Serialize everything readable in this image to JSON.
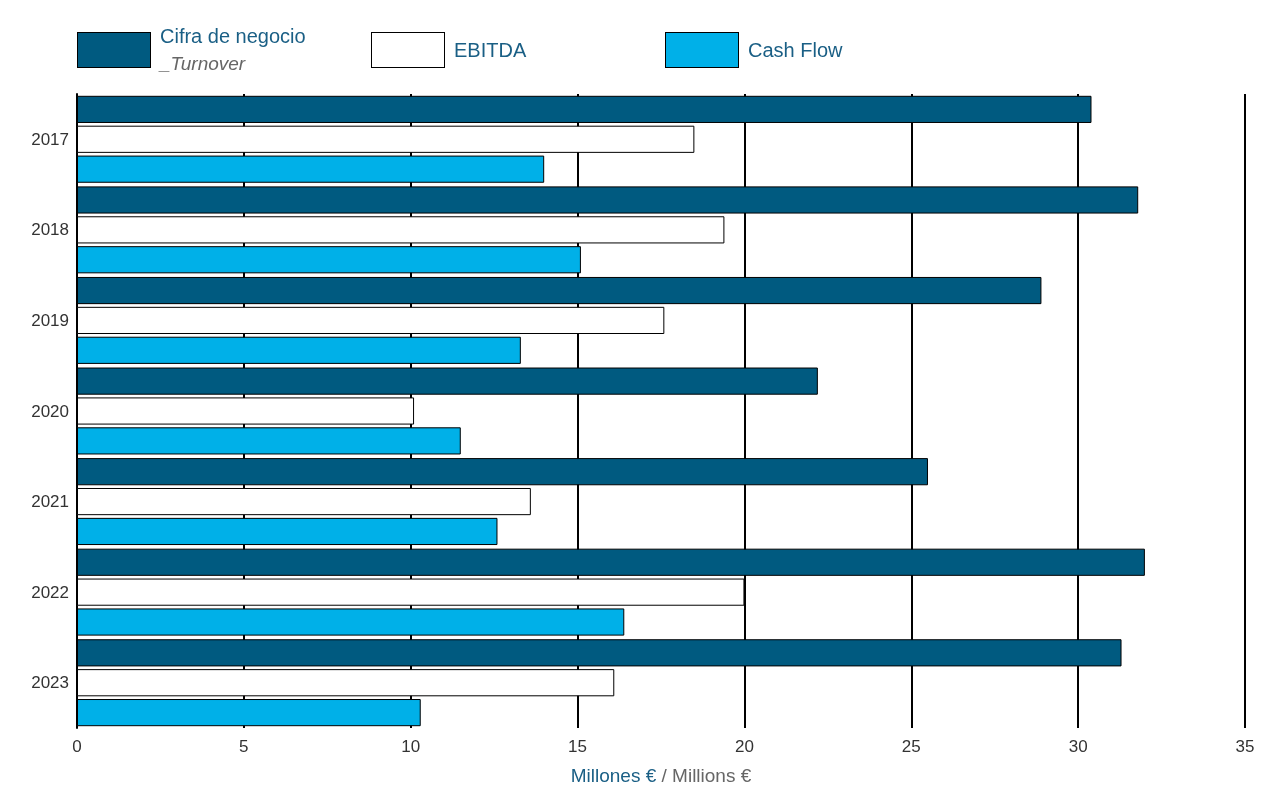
{
  "chart_data": {
    "type": "bar",
    "orientation": "horizontal",
    "xlabel": "Millones € / Millions €",
    "categories": [
      "2017",
      "2018",
      "2019",
      "2020",
      "2021",
      "2022",
      "2023"
    ],
    "series": [
      {
        "name": "Cifra de negocio\n_Turnover",
        "color": "#005a80",
        "values": [
          30.4,
          31.8,
          28.9,
          22.2,
          25.5,
          32.0,
          31.3
        ]
      },
      {
        "name": "EBITDA",
        "color": "#ffffff",
        "values": [
          18.5,
          19.4,
          17.6,
          10.1,
          13.6,
          20.0,
          16.1
        ]
      },
      {
        "name": "Cash Flow",
        "color": "#00b0e8",
        "values": [
          14.0,
          15.1,
          13.3,
          11.5,
          12.6,
          16.4,
          10.3
        ]
      }
    ],
    "xlim": [
      0,
      35
    ],
    "xticks": [
      0,
      5,
      10,
      15,
      20,
      25,
      30,
      35
    ],
    "grid": "x",
    "legend": "top left"
  }
}
